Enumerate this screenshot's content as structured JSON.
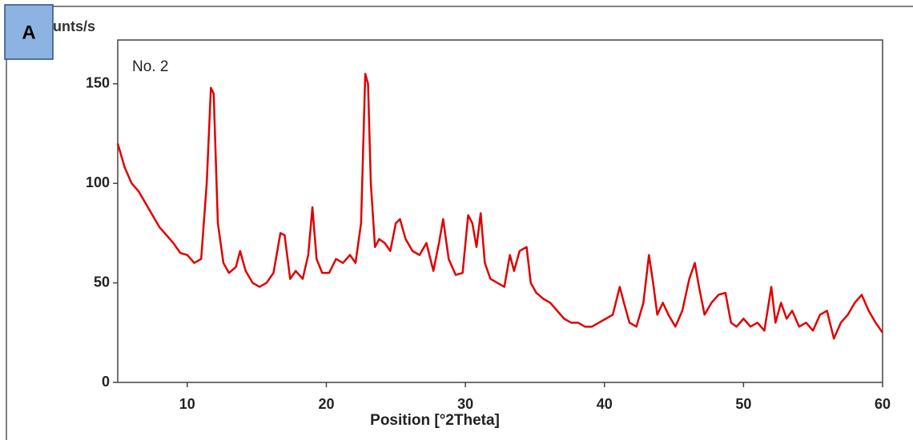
{
  "chart_data": {
    "type": "line",
    "panel_label": "A",
    "ylabel": "Counts/s",
    "xlabel": "Position [°2Theta]",
    "annotation": "No. 2",
    "xlim": [
      5,
      60
    ],
    "ylim": [
      0,
      172
    ],
    "xticks": [
      10,
      20,
      30,
      40,
      50,
      60
    ],
    "yticks": [
      0,
      50,
      100,
      150
    ],
    "grid": false,
    "series": [
      {
        "name": "No. 2",
        "color": "#e00000",
        "x": [
          5,
          5.5,
          6,
          6.5,
          7,
          7.5,
          8,
          8.5,
          9,
          9.5,
          10,
          10.5,
          11,
          11.4,
          11.7,
          11.9,
          12.2,
          12.6,
          13,
          13.5,
          13.8,
          14.2,
          14.7,
          15.2,
          15.7,
          16.2,
          16.7,
          17,
          17.4,
          17.8,
          18.3,
          18.7,
          19,
          19.3,
          19.7,
          20.2,
          20.7,
          21.2,
          21.7,
          22.1,
          22.5,
          22.8,
          23,
          23.2,
          23.5,
          23.8,
          24.2,
          24.6,
          25,
          25.3,
          25.7,
          26.2,
          26.7,
          27.2,
          27.7,
          28.1,
          28.4,
          28.8,
          29.3,
          29.8,
          30.2,
          30.5,
          30.8,
          31.1,
          31.4,
          31.8,
          32.3,
          32.8,
          33.2,
          33.5,
          33.9,
          34.4,
          34.7,
          35.1,
          35.6,
          36.1,
          36.6,
          37.1,
          37.6,
          38.1,
          38.6,
          39.1,
          39.6,
          40.1,
          40.6,
          41.1,
          41.4,
          41.8,
          42.3,
          42.8,
          43.2,
          43.5,
          43.8,
          44.2,
          44.6,
          45.1,
          45.6,
          46.1,
          46.5,
          46.8,
          47.2,
          47.7,
          48.2,
          48.7,
          49.1,
          49.5,
          50,
          50.5,
          51,
          51.5,
          52,
          52.3,
          52.7,
          53.1,
          53.5,
          54,
          54.5,
          55,
          55.5,
          56,
          56.5,
          57,
          57.5,
          58,
          58.5,
          59,
          59.5,
          60
        ],
        "values": [
          120,
          108,
          100,
          96,
          90,
          84,
          78,
          74,
          70,
          65,
          64,
          60,
          62,
          100,
          148,
          145,
          80,
          60,
          55,
          58,
          66,
          56,
          50,
          48,
          50,
          55,
          75,
          74,
          52,
          56,
          52,
          64,
          88,
          62,
          55,
          55,
          62,
          60,
          64,
          60,
          80,
          155,
          150,
          100,
          68,
          72,
          70,
          66,
          80,
          82,
          72,
          66,
          64,
          70,
          56,
          70,
          82,
          62,
          54,
          55,
          84,
          80,
          68,
          85,
          60,
          52,
          50,
          48,
          64,
          56,
          66,
          68,
          50,
          45,
          42,
          40,
          36,
          32,
          30,
          30,
          28,
          28,
          30,
          32,
          34,
          48,
          40,
          30,
          28,
          40,
          64,
          50,
          34,
          40,
          34,
          28,
          36,
          52,
          60,
          48,
          34,
          40,
          44,
          45,
          30,
          28,
          32,
          28,
          30,
          26,
          48,
          30,
          40,
          32,
          36,
          28,
          30,
          26,
          34,
          36,
          22,
          30,
          34,
          40,
          44,
          36,
          30,
          25
        ]
      }
    ]
  }
}
